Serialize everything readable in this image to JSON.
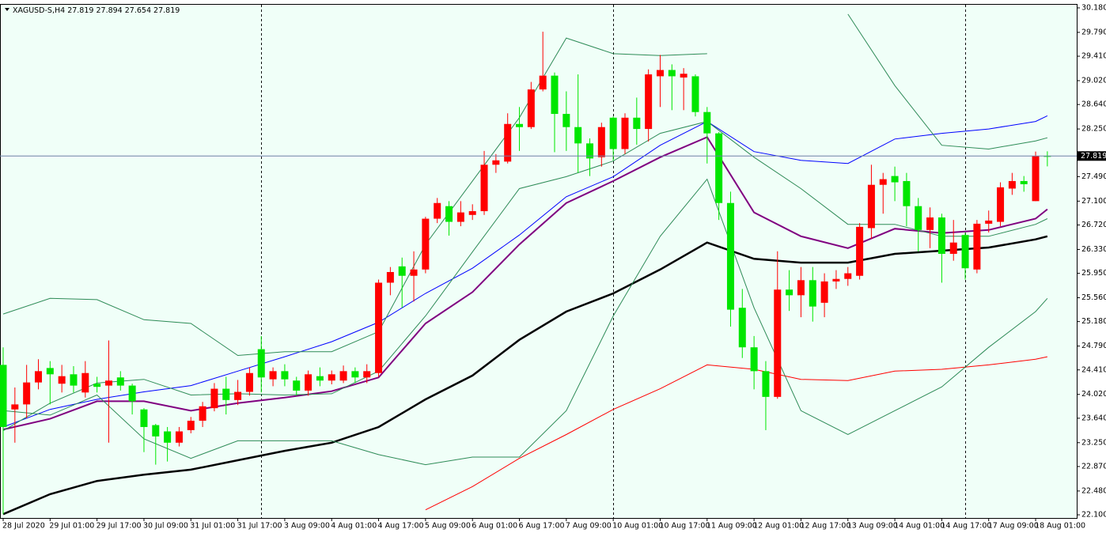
{
  "chart_data": {
    "type": "candlestick",
    "title": "XAGUSD-S,H4",
    "categories": [
      "28 Jul 2020",
      null,
      null,
      null,
      "29 Jul 01:00",
      null,
      null,
      null,
      "29 Jul 17:00",
      null,
      null,
      null,
      "30 Jul 09:00",
      null,
      null,
      null,
      "31 Jul 01:00",
      null,
      null,
      null,
      "31 Jul 17:00",
      null,
      null,
      null,
      "3 Aug 09:00",
      null,
      null,
      null,
      "4 Aug 01:00",
      null,
      null,
      null,
      "4 Aug 17:00",
      null,
      null,
      null,
      "5 Aug 09:00",
      null,
      null,
      null,
      "6 Aug 01:00",
      null,
      null,
      null,
      "6 Aug 17:00",
      null,
      null,
      null,
      "7 Aug 09:00",
      null,
      null,
      null,
      "10 Aug 01:00",
      null,
      null,
      null,
      "10 Aug 17:00",
      null,
      null,
      null,
      "11 Aug 09:00",
      null,
      null,
      null,
      "12 Aug 01:00",
      null,
      null,
      null,
      "12 Aug 17:00",
      null,
      null,
      null,
      "13 Aug 09:00",
      null,
      null,
      null,
      "14 Aug 01:00",
      null,
      null,
      null,
      "14 Aug 17:00",
      null,
      null,
      null,
      "17 Aug 09:00",
      null,
      null,
      null,
      "18 Aug 01:00",
      null
    ],
    "open": [
      24.49,
      23.78,
      23.86,
      24.21,
      24.44,
      24.19,
      24.34,
      24.05,
      24.19,
      24.16,
      24.29,
      24.16,
      23.78,
      23.53,
      23.43,
      23.25,
      23.45,
      23.6,
      23.8,
      24.11,
      23.93,
      24.06,
      24.74,
      24.26,
      24.39,
      24.24,
      24.08,
      24.31,
      24.24,
      24.24,
      24.39,
      24.29,
      24.36,
      25.8,
      26.06,
      25.91,
      26.01,
      26.82,
      27.02,
      26.77,
      26.88,
      26.94,
      27.68,
      27.73,
      28.33,
      28.28,
      28.88,
      29.1,
      28.49,
      28.28,
      28.02,
      27.8,
      28.43,
      27.93,
      28.43,
      28.25,
      29.09,
      29.19,
      29.07,
      29.09,
      28.52,
      28.18,
      27.07,
      25.4,
      24.77,
      24.39,
      23.98,
      25.69,
      25.6,
      25.84,
      25.48,
      25.82,
      25.86,
      25.91,
      26.67,
      27.36,
      27.5,
      27.42,
      27.02,
      26.64,
      26.84,
      26.26,
      26.56,
      26.01,
      26.74,
      26.77,
      27.3,
      27.42,
      27.1,
      27.819
    ],
    "high": [
      24.77,
      24.13,
      24.49,
      24.58,
      24.55,
      24.49,
      24.47,
      24.55,
      24.3,
      24.88,
      24.39,
      24.19,
      23.8,
      23.55,
      23.5,
      23.5,
      23.66,
      23.9,
      24.2,
      24.3,
      24.25,
      24.45,
      24.95,
      24.45,
      24.5,
      24.3,
      24.4,
      24.45,
      24.4,
      24.48,
      24.45,
      24.5,
      25.85,
      26.05,
      26.2,
      26.3,
      26.85,
      27.15,
      27.1,
      27.1,
      27.05,
      27.9,
      27.85,
      28.5,
      28.6,
      29.0,
      29.8,
      29.15,
      28.85,
      29.12,
      28.1,
      28.35,
      28.45,
      28.5,
      28.75,
      29.2,
      29.43,
      29.28,
      29.22,
      29.12,
      28.6,
      28.2,
      27.25,
      25.7,
      24.95,
      24.55,
      26.3,
      26.0,
      26.05,
      26.05,
      25.95,
      26.0,
      26.05,
      26.75,
      27.68,
      27.55,
      27.65,
      27.55,
      27.15,
      27.0,
      26.9,
      26.8,
      26.6,
      26.8,
      26.95,
      27.4,
      27.55,
      27.5,
      27.89,
      27.894
    ],
    "low": [
      22.11,
      23.25,
      23.64,
      24.1,
      23.86,
      24.05,
      24.05,
      23.97,
      24.05,
      23.25,
      24.08,
      23.7,
      23.1,
      22.9,
      22.95,
      23.19,
      23.4,
      23.5,
      23.75,
      23.7,
      23.85,
      24.0,
      24.05,
      24.15,
      24.15,
      24.0,
      24.0,
      24.15,
      24.18,
      24.2,
      24.2,
      24.2,
      24.3,
      25.6,
      25.4,
      25.5,
      25.95,
      26.75,
      26.55,
      26.7,
      26.8,
      26.88,
      27.55,
      27.7,
      27.9,
      28.25,
      28.85,
      27.88,
      27.9,
      27.55,
      27.5,
      27.65,
      27.75,
      27.85,
      28.0,
      28.05,
      28.6,
      28.55,
      28.55,
      28.45,
      27.7,
      26.8,
      25.1,
      24.6,
      24.1,
      23.45,
      23.95,
      25.35,
      25.25,
      25.18,
      25.25,
      25.7,
      25.75,
      25.85,
      26.5,
      26.9,
      27.1,
      26.7,
      26.3,
      26.35,
      25.8,
      26.15,
      25.85,
      25.95,
      26.6,
      26.7,
      27.2,
      27.25,
      27.1,
      27.654
    ],
    "close": [
      23.5,
      23.86,
      24.21,
      24.39,
      24.34,
      24.31,
      24.16,
      24.36,
      24.14,
      24.24,
      24.16,
      23.91,
      23.5,
      23.35,
      23.25,
      23.43,
      23.6,
      23.83,
      24.11,
      23.93,
      24.06,
      24.36,
      24.29,
      24.39,
      24.26,
      24.08,
      24.34,
      24.24,
      24.34,
      24.39,
      24.29,
      24.39,
      25.8,
      25.97,
      25.91,
      26.01,
      26.82,
      27.07,
      26.77,
      26.92,
      26.94,
      27.68,
      27.75,
      28.33,
      28.28,
      28.88,
      29.1,
      28.49,
      28.28,
      28.02,
      27.78,
      28.28,
      27.93,
      28.43,
      28.25,
      29.12,
      29.19,
      29.09,
      29.13,
      28.52,
      28.18,
      27.07,
      25.37,
      24.77,
      24.39,
      23.98,
      25.69,
      25.6,
      25.84,
      25.42,
      25.82,
      25.86,
      25.95,
      26.69,
      27.36,
      27.45,
      27.4,
      27.02,
      26.64,
      26.84,
      26.26,
      26.44,
      26.03,
      26.74,
      26.79,
      27.32,
      27.42,
      27.37,
      27.82,
      27.819
    ],
    "up_color": "#ff0000",
    "down_color": "#00e600",
    "indicators": [
      {
        "color": "#0000ff",
        "width": 1,
        "x": [
          0,
          4,
          8,
          12,
          16,
          20,
          24,
          28,
          32,
          36,
          40,
          44,
          48,
          52,
          56,
          60,
          64,
          68,
          72,
          76,
          80,
          84,
          88,
          89
        ],
        "values": [
          23.5,
          23.78,
          23.94,
          24.06,
          24.16,
          24.39,
          24.62,
          24.86,
          25.17,
          25.63,
          26.03,
          26.56,
          27.17,
          27.49,
          27.99,
          28.37,
          27.89,
          27.75,
          27.7,
          28.09,
          28.18,
          28.25,
          28.37,
          28.46
        ]
      },
      {
        "color": "#800080",
        "width": 2,
        "x": [
          0,
          4,
          8,
          12,
          16,
          20,
          24,
          28,
          32,
          36,
          40,
          44,
          48,
          52,
          56,
          60,
          64,
          68,
          72,
          76,
          80,
          84,
          88,
          89
        ],
        "values": [
          23.46,
          23.63,
          23.91,
          23.91,
          23.76,
          23.88,
          23.97,
          24.07,
          24.29,
          25.15,
          25.65,
          26.41,
          27.07,
          27.42,
          27.8,
          28.12,
          26.92,
          26.54,
          26.35,
          26.66,
          26.59,
          26.64,
          26.82,
          26.97
        ]
      },
      {
        "color": "#000000",
        "width": 2.5,
        "x": [
          0,
          4,
          8,
          12,
          16,
          20,
          24,
          28,
          32,
          36,
          40,
          44,
          48,
          52,
          56,
          60,
          64,
          68,
          72,
          76,
          80,
          84,
          88,
          89
        ],
        "values": [
          22.11,
          22.43,
          22.64,
          22.74,
          22.82,
          22.97,
          23.12,
          23.25,
          23.5,
          23.94,
          24.32,
          24.89,
          25.34,
          25.63,
          26.01,
          26.44,
          26.18,
          26.12,
          26.12,
          26.26,
          26.31,
          26.36,
          26.49,
          26.54
        ]
      },
      {
        "color": "#ff0000",
        "width": 1,
        "x": [
          0,
          4,
          8,
          12,
          16,
          20,
          24,
          28,
          32,
          36,
          40,
          44,
          48,
          52,
          56,
          60,
          64,
          68,
          72,
          76,
          80,
          84,
          88,
          89
        ],
        "values": [
          null,
          null,
          null,
          null,
          null,
          null,
          null,
          null,
          null,
          22.18,
          22.55,
          23.0,
          23.38,
          23.78,
          24.11,
          24.49,
          24.42,
          24.26,
          24.24,
          24.39,
          24.42,
          24.49,
          24.58,
          24.62
        ]
      },
      {
        "color": "#2e8b57",
        "width": 1,
        "x": [
          0,
          4,
          8,
          12,
          16,
          20,
          24,
          28,
          32,
          36,
          40,
          44,
          48,
          52,
          56,
          60,
          64,
          68,
          72,
          76,
          80,
          84,
          88,
          89
        ],
        "values": [
          25.3,
          25.55,
          25.53,
          25.21,
          25.15,
          24.64,
          24.7,
          24.7,
          25.02,
          26.41,
          27.42,
          28.43,
          29.7,
          29.45,
          29.42,
          29.45,
          null,
          null,
          30.08,
          28.94,
          27.99,
          27.93,
          28.06,
          28.11
        ]
      },
      {
        "color": "#2e8b57",
        "width": 1,
        "x": [
          0,
          4,
          8,
          12,
          16,
          20,
          24,
          28,
          32,
          36,
          40,
          44,
          48,
          52,
          56,
          60,
          64,
          68,
          72,
          76,
          80,
          84,
          88,
          89
        ],
        "values": [
          23.76,
          23.69,
          24.01,
          23.31,
          23.0,
          23.28,
          23.28,
          23.28,
          23.06,
          22.9,
          23.02,
          23.02,
          23.76,
          25.27,
          26.54,
          27.45,
          25.4,
          23.76,
          23.38,
          23.76,
          24.14,
          24.77,
          25.34,
          25.55
        ]
      },
      {
        "color": "#2e8b57",
        "width": 1,
        "x": [
          0,
          4,
          8,
          12,
          16,
          20,
          24,
          28,
          32,
          36,
          40,
          44,
          48,
          52,
          56,
          60,
          64,
          68,
          72,
          76,
          80,
          84,
          88,
          89
        ],
        "values": [
          23.44,
          23.88,
          24.2,
          24.26,
          24.01,
          24.03,
          24.01,
          24.03,
          24.39,
          25.27,
          26.29,
          27.3,
          27.49,
          27.74,
          28.18,
          28.37,
          27.8,
          27.3,
          26.73,
          26.73,
          26.54,
          26.54,
          26.73,
          26.82
        ]
      }
    ],
    "ylim": [
      22.05,
      30.23
    ],
    "yticks": [
      {
        "value": 30.18,
        "label": "30.180"
      },
      {
        "value": 29.79,
        "label": "29.790"
      },
      {
        "value": 29.41,
        "label": "29.410"
      },
      {
        "value": 29.02,
        "label": "29.020"
      },
      {
        "value": 28.64,
        "label": "28.640"
      },
      {
        "value": 28.25,
        "label": "28.250"
      },
      {
        "value": 27.49,
        "label": "27.490"
      },
      {
        "value": 27.1,
        "label": "27.100"
      },
      {
        "value": 26.72,
        "label": "26.720"
      },
      {
        "value": 26.33,
        "label": "26.330"
      },
      {
        "value": 25.95,
        "label": "25.950"
      },
      {
        "value": 25.56,
        "label": "25.560"
      },
      {
        "value": 25.18,
        "label": "25.180"
      },
      {
        "value": 24.79,
        "label": "24.790"
      },
      {
        "value": 24.41,
        "label": "24.410"
      },
      {
        "value": 24.02,
        "label": "24.020"
      },
      {
        "value": 23.64,
        "label": "23.640"
      },
      {
        "value": 23.25,
        "label": "23.250"
      },
      {
        "value": 22.87,
        "label": "22.870"
      },
      {
        "value": 22.48,
        "label": "22.480"
      },
      {
        "value": 22.1,
        "label": "22.100"
      }
    ]
  }
}
